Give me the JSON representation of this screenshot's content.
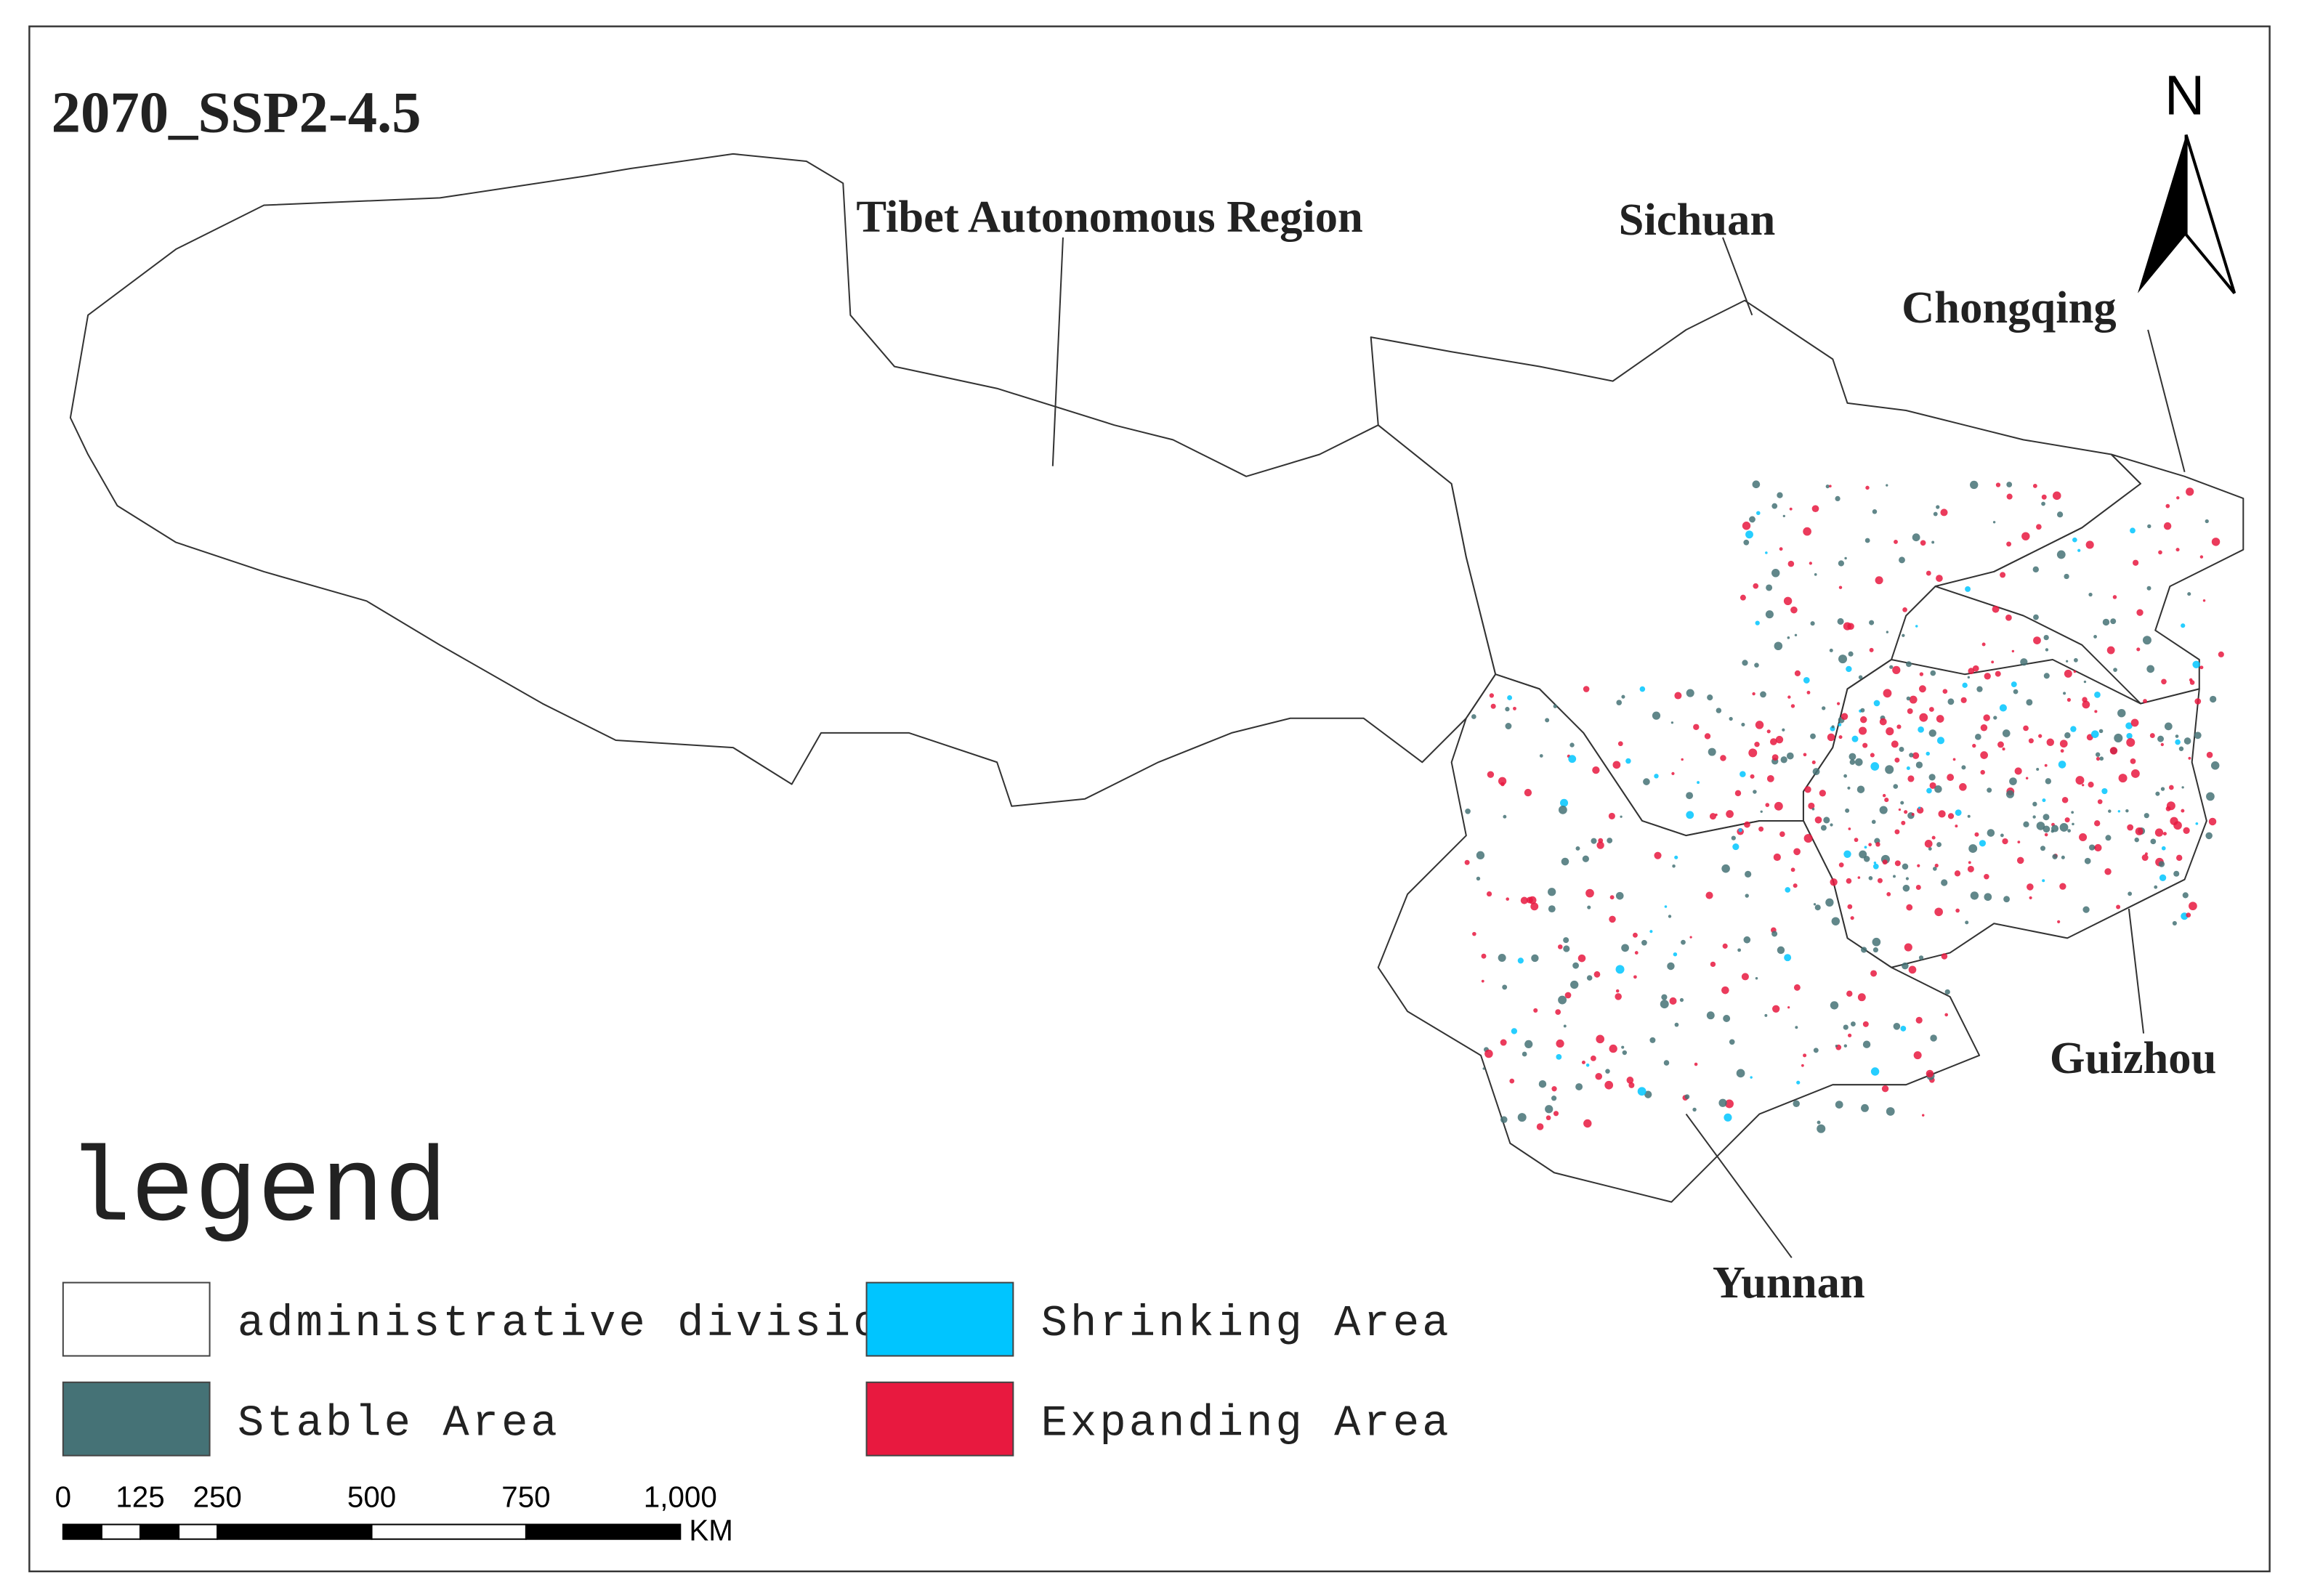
{
  "title": "2070_SSP2-4.5",
  "north": "N",
  "regions": [
    "Tibet Autonomous Region",
    "Sichuan",
    "Chongqing",
    "Guizhou",
    "Yunnan"
  ],
  "legend": {
    "title": "legend",
    "items": [
      {
        "label": "administrative division",
        "color": "#ffffff"
      },
      {
        "label": "Stable Area",
        "color": "#457276"
      },
      {
        "label": "Shrinking Area",
        "color": "#00c5ff"
      },
      {
        "label": "Expanding Area",
        "color": "#e8193f"
      }
    ]
  },
  "scale_bar": {
    "ticks": [
      0,
      125,
      250,
      500,
      750,
      {
        "value": 1000,
        "label": "1,000"
      }
    ],
    "unit": "KM"
  }
}
